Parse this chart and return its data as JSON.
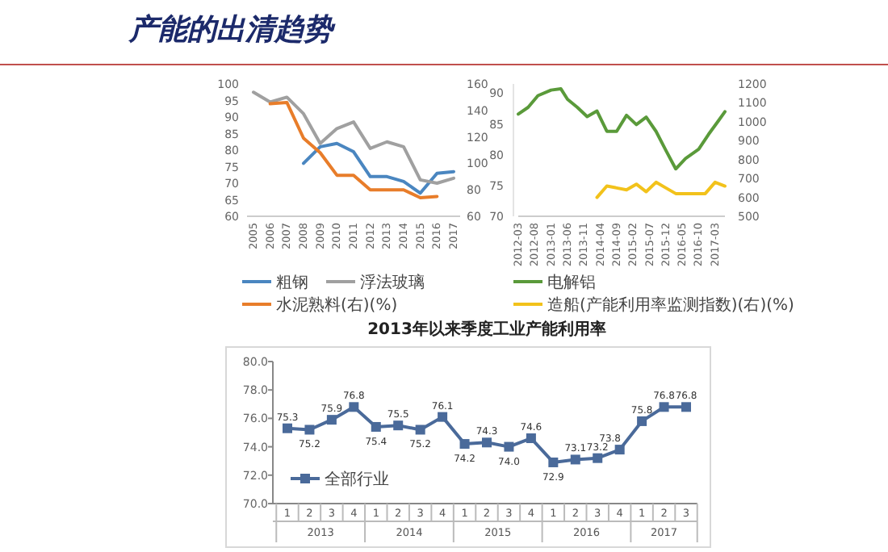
{
  "chart_data": [
    {
      "type": "line",
      "title": "产能的出清趋势",
      "categories": [
        "2005",
        "2006",
        "2007",
        "2008",
        "2009",
        "2010",
        "2011",
        "2012",
        "2013",
        "2014",
        "2015",
        "2016",
        "2017"
      ],
      "series": [
        {
          "name": "粗钢",
          "color": "#4a86c0",
          "values": [
            null,
            null,
            null,
            76,
            81,
            82,
            79.5,
            72,
            72,
            70.5,
            67,
            73,
            73.5
          ]
        },
        {
          "name": "浮法玻璃",
          "color": "#a0a0a0",
          "values": [
            97.5,
            94.5,
            96,
            91,
            82,
            86.5,
            88.5,
            80.5,
            82.5,
            81,
            71,
            70,
            71.5
          ]
        },
        {
          "name": "水泥熟料(右)(%)",
          "color": "#e87d2a",
          "axis": "y2",
          "values": [
            null,
            145,
            146,
            119,
            108,
            91,
            91,
            80,
            80,
            80,
            74,
            75,
            null
          ]
        }
      ],
      "ylim": [
        60,
        100
      ],
      "yticks": [
        60,
        65,
        70,
        75,
        80,
        85,
        90,
        95,
        100
      ],
      "y2lim": [
        60,
        160
      ],
      "y2ticks": [
        60,
        80,
        100,
        120,
        140,
        160
      ],
      "legend": "bottom"
    },
    {
      "type": "line",
      "xlim": [
        "2012-03",
        "2017-06"
      ],
      "xticks": [
        "2012-03",
        "2012-08",
        "2013-01",
        "2013-06",
        "2013-11",
        "2014-04",
        "2014-09",
        "2015-02",
        "2015-07",
        "2015-12",
        "2016-05",
        "2016-10",
        "2017-03"
      ],
      "series": [
        {
          "name": "电解铝",
          "color": "#5a9a3a",
          "x": [
            "2012-03",
            "2012-06",
            "2012-09",
            "2013-01",
            "2013-04",
            "2013-06",
            "2013-09",
            "2013-12",
            "2014-03",
            "2014-06",
            "2014-09",
            "2014-12",
            "2015-03",
            "2015-06",
            "2015-09",
            "2015-12",
            "2016-03",
            "2016-06",
            "2016-10",
            "2017-01",
            "2017-04",
            "2017-06"
          ],
          "values": [
            86.6,
            87.7,
            89.6,
            90.5,
            90.7,
            89,
            87.7,
            86.2,
            87.1,
            83.8,
            83.8,
            86.4,
            84.9,
            86.1,
            83.8,
            80.7,
            77.7,
            79.4,
            80.9,
            83.3,
            85.5,
            87
          ]
        },
        {
          "name": "造船(产能利用率监测指数)(右)(%)",
          "color": "#f2c21b",
          "axis": "y2",
          "x": [
            "2014-03",
            "2014-06",
            "2014-09",
            "2014-12",
            "2015-03",
            "2015-06",
            "2015-09",
            "2015-12",
            "2016-03",
            "2016-06",
            "2016-10",
            "2016-12",
            "2017-03",
            "2017-06"
          ],
          "values": [
            600,
            660,
            650,
            640,
            670,
            630,
            680,
            650,
            620,
            620,
            620,
            620,
            680,
            660
          ]
        }
      ],
      "ylim": [
        70,
        91.5
      ],
      "yticks": [
        70,
        75,
        80,
        85,
        90
      ],
      "y2lim": [
        500,
        1200
      ],
      "y2ticks": [
        500,
        600,
        700,
        800,
        900,
        1000,
        1100,
        1200
      ],
      "legend": "bottom"
    },
    {
      "type": "line",
      "title": "2013年以来季度工业产能利用率",
      "categories": [
        "1",
        "2",
        "3",
        "4",
        "1",
        "2",
        "3",
        "4",
        "1",
        "2",
        "3",
        "4",
        "1",
        "2",
        "3",
        "4",
        "1",
        "2",
        "3"
      ],
      "series": [
        {
          "name": "全部行业",
          "color": "#4a6a9a",
          "values": [
            75.3,
            75.2,
            75.9,
            76.8,
            75.4,
            75.5,
            75.2,
            76.1,
            74.2,
            74.3,
            74.0,
            74.6,
            72.9,
            73.1,
            73.2,
            73.8,
            75.8,
            76.8,
            76.8
          ]
        }
      ],
      "ylim": [
        70,
        80
      ],
      "yticks": [
        {
          "value": 70,
          "label": "70.0"
        },
        {
          "value": 72,
          "label": "72.0"
        },
        {
          "value": 74,
          "label": "74.0"
        },
        {
          "value": 76,
          "label": "76.0"
        },
        {
          "value": 78,
          "label": "78.0"
        },
        {
          "value": 80,
          "label": "80.0"
        }
      ],
      "marker": "square",
      "value_labels": [
        "75.3",
        "75.2",
        "75.9",
        "76.8",
        "75.4",
        "75.5",
        "75.2",
        "76.1",
        "74.2",
        "74.3",
        "74.0",
        "74.6",
        "72.9",
        "73.1",
        "73.2",
        "73.8",
        "75.8",
        "76.8",
        "76.8"
      ],
      "legend": "bottom left",
      "annotations": [
        "2013",
        "2014",
        "2015",
        "2016",
        "2017"
      ]
    }
  ]
}
